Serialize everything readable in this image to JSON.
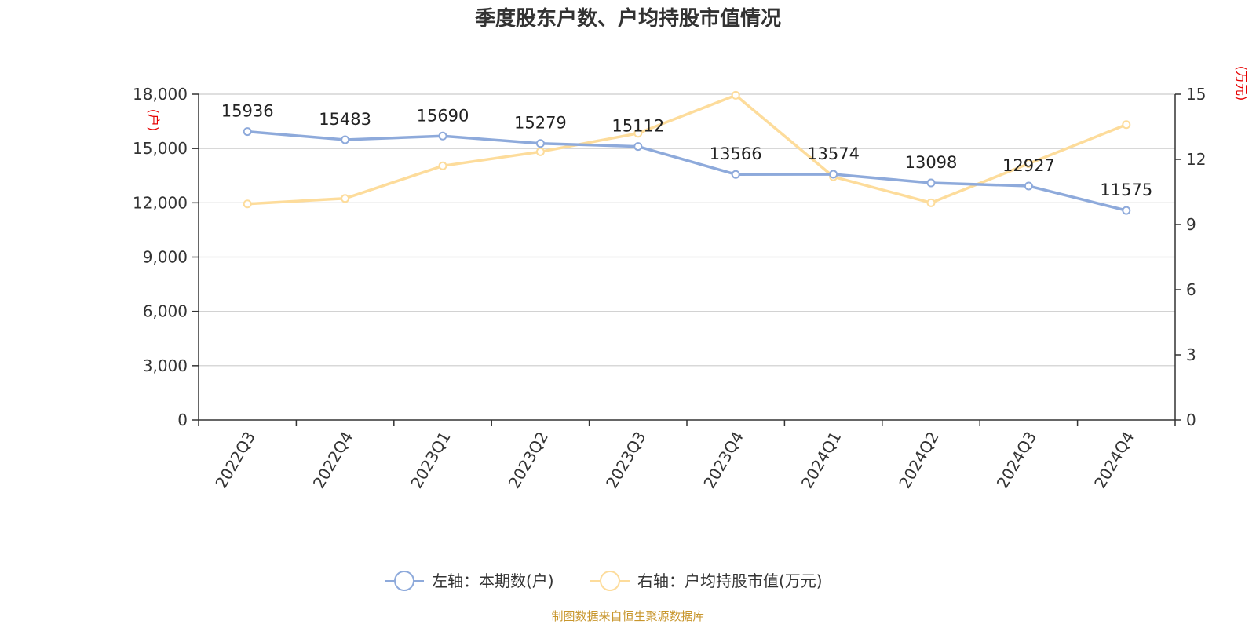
{
  "chart_data": {
    "type": "line",
    "title": "季度股东户数、户均持股市值情况",
    "categories": [
      "2022Q3",
      "2022Q4",
      "2023Q1",
      "2023Q2",
      "2023Q3",
      "2023Q4",
      "2024Q1",
      "2024Q2",
      "2024Q3",
      "2024Q4"
    ],
    "series": [
      {
        "name": "左轴：本期数(户)",
        "axis": "left",
        "color": "#8eaadb",
        "values": [
          15936,
          15483,
          15690,
          15279,
          15112,
          13566,
          13574,
          13098,
          12927,
          11575
        ],
        "data_labels": [
          "15936",
          "15483",
          "15690",
          "15279",
          "15112",
          "13566",
          "13574",
          "13098",
          "12927",
          "11575"
        ]
      },
      {
        "name": "右轴：户均持股市值(万元)",
        "axis": "right",
        "color": "#fddc9b",
        "values": [
          9.95,
          10.2,
          11.7,
          12.35,
          13.2,
          14.95,
          11.2,
          10.0,
          11.8,
          13.6
        ]
      }
    ],
    "y_left": {
      "unit_label": "(户)",
      "range": [
        0,
        18000
      ],
      "ticks": [
        "0",
        "3,000",
        "6,000",
        "9,000",
        "12,000",
        "15,000",
        "18,000"
      ]
    },
    "y_right": {
      "unit_label": "(万元)",
      "range": [
        0,
        15
      ],
      "ticks": [
        "0",
        "3",
        "6",
        "9",
        "12",
        "15"
      ]
    },
    "grid": true,
    "legend_position": "bottom-center",
    "source": "制图数据来自恒生聚源数据库"
  }
}
